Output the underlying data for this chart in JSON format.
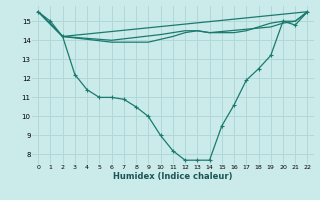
{
  "xlabel": "Humidex (Indice chaleur)",
  "bg_color": "#cbeaea",
  "grid_color": "#b0d8d8",
  "line_color": "#1a7a6e",
  "xlim": [
    -0.5,
    22.5
  ],
  "ylim": [
    7.5,
    15.8
  ],
  "yticks": [
    8,
    9,
    10,
    11,
    12,
    13,
    14,
    15
  ],
  "xticks": [
    0,
    1,
    2,
    3,
    4,
    5,
    6,
    7,
    8,
    9,
    10,
    11,
    12,
    13,
    14,
    15,
    16,
    17,
    18,
    19,
    20,
    21,
    22
  ],
  "line1_x": [
    0,
    1,
    2,
    3,
    4,
    5,
    6,
    7,
    8,
    9,
    10,
    11,
    12,
    13,
    14,
    15,
    16,
    17,
    18,
    19,
    20,
    21,
    22
  ],
  "line1_y": [
    15.5,
    15.0,
    14.2,
    12.2,
    11.4,
    11.0,
    11.0,
    10.9,
    10.5,
    10.0,
    9.0,
    8.2,
    7.7,
    7.7,
    7.7,
    9.5,
    10.6,
    11.9,
    12.5,
    13.2,
    15.0,
    14.8,
    15.5
  ],
  "line2_x": [
    0,
    2,
    22
  ],
  "line2_y": [
    15.5,
    14.2,
    15.5
  ],
  "line3_x": [
    0,
    2,
    6,
    10,
    12,
    13,
    14,
    15,
    16,
    17,
    18,
    19,
    20,
    21,
    22
  ],
  "line3_y": [
    15.5,
    14.2,
    14.0,
    14.3,
    14.5,
    14.5,
    14.4,
    14.4,
    14.4,
    14.5,
    14.7,
    14.9,
    15.0,
    15.0,
    15.5
  ],
  "line4_x": [
    0,
    2,
    6,
    9,
    11,
    12,
    13,
    14,
    19,
    20,
    21,
    22
  ],
  "line4_y": [
    15.5,
    14.2,
    13.9,
    13.9,
    14.2,
    14.4,
    14.5,
    14.4,
    14.7,
    14.9,
    15.0,
    15.5
  ]
}
